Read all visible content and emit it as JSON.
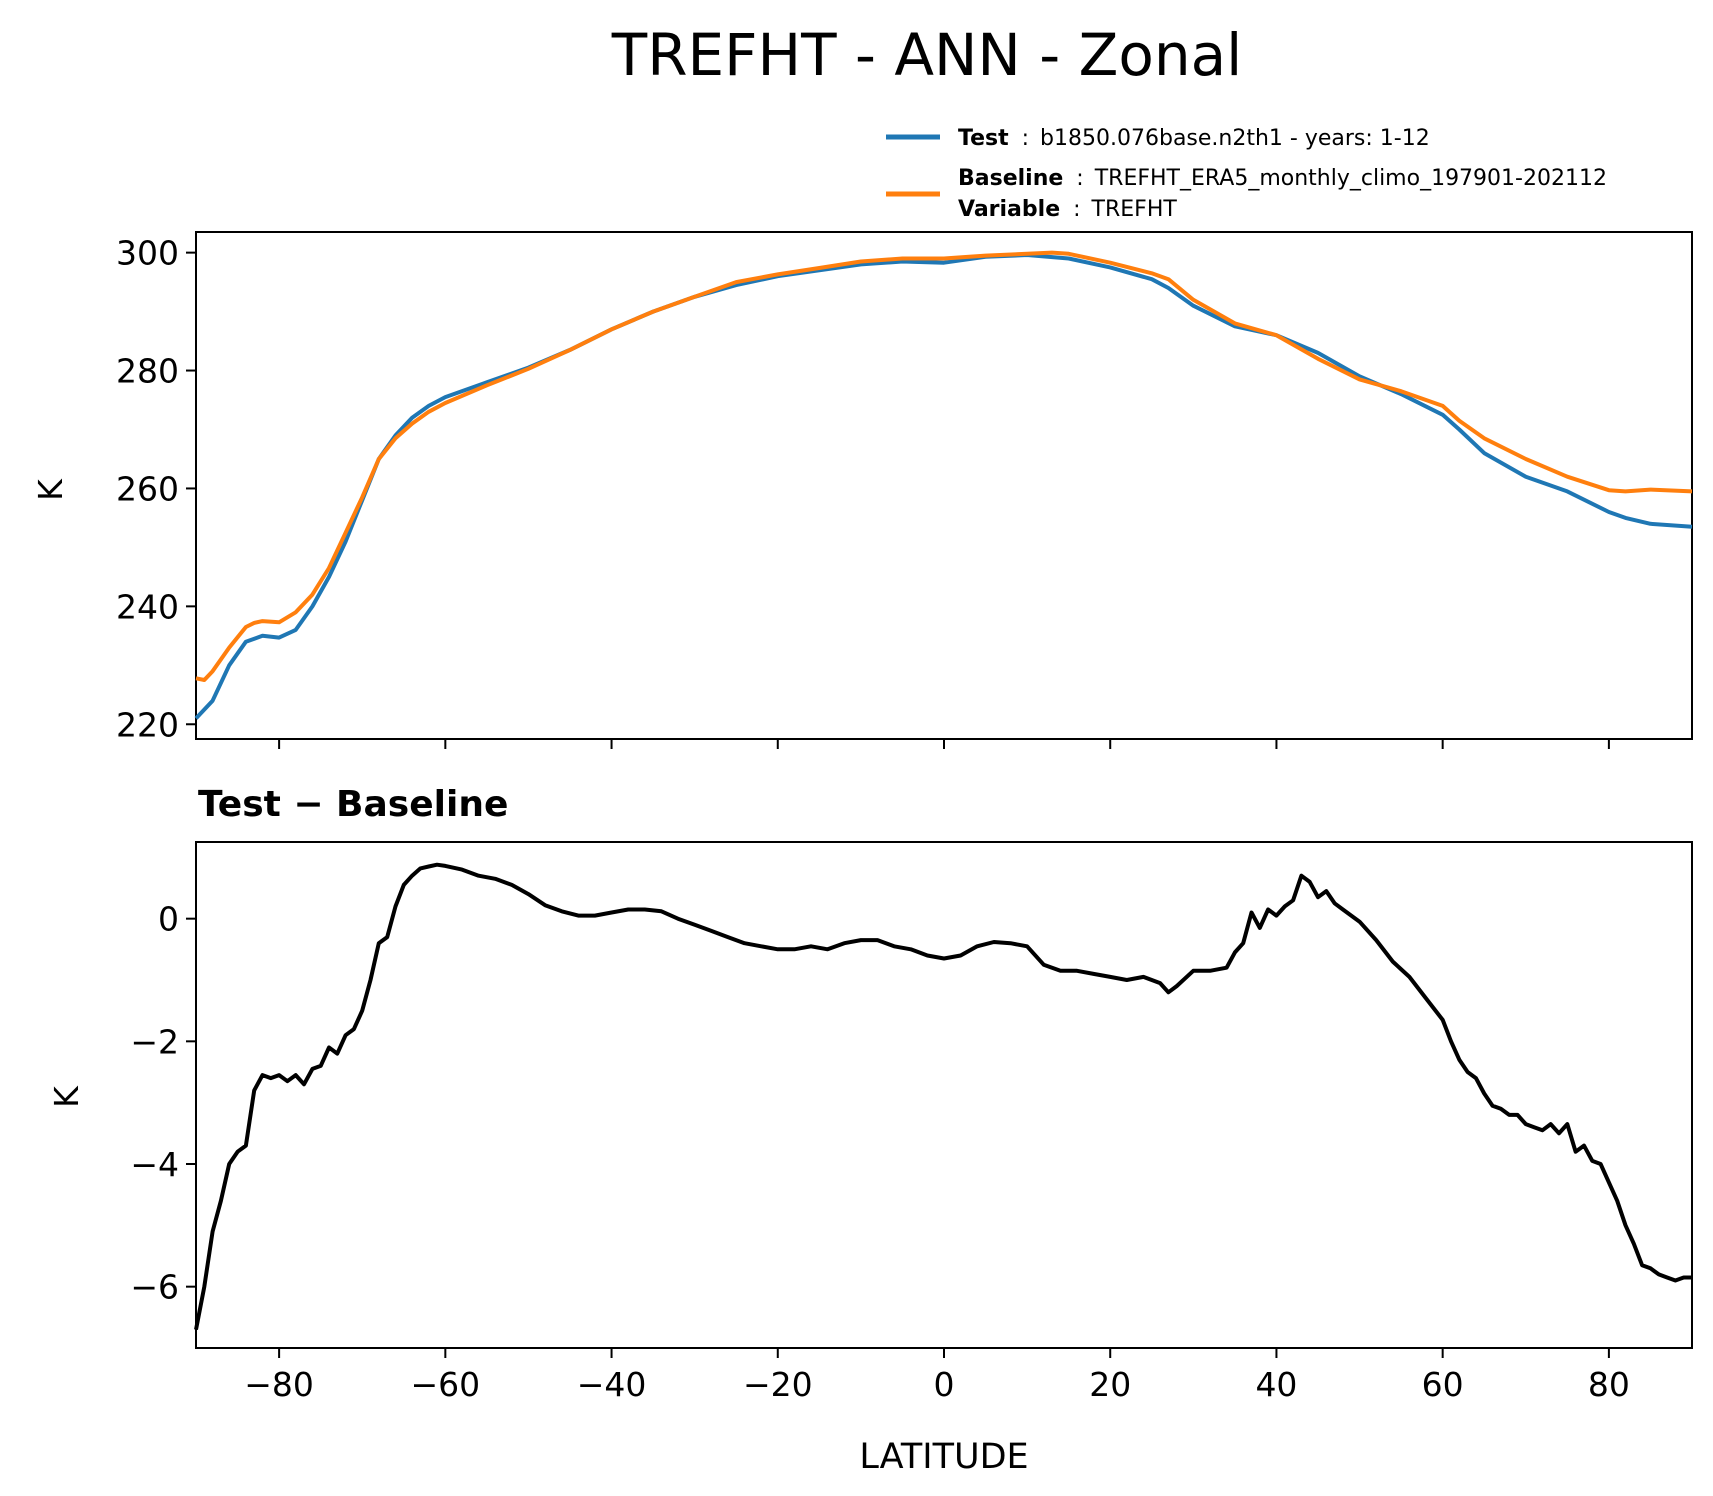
{
  "title": "TREFHT - ANN - Zonal",
  "legend": {
    "test_label": "Test",
    "test_text": "b1850.076base.n2th1 - years: 1-12",
    "baseline_label": "Baseline",
    "baseline_text": "TREFHT_ERA5_monthly_climo_197901-202112",
    "variable_label": "Variable",
    "variable_text": "TREFHT",
    "separator": ":"
  },
  "diff_title": "Test − Baseline",
  "colors": {
    "test": "#1f77b4",
    "baseline": "#ff7f0e",
    "diff": "#000000"
  },
  "chart_data": [
    {
      "type": "line",
      "xlabel": "",
      "ylabel": "K",
      "xlim": [
        -90,
        90
      ],
      "ylim": [
        217.5,
        303.5
      ],
      "yticks": [
        "220",
        "240",
        "260",
        "280",
        "300"
      ],
      "grid": false,
      "legend_position": "above-right",
      "series": [
        {
          "name": "Test",
          "color": "#1f77b4",
          "x": [
            -90,
            -88,
            -86,
            -84,
            -82,
            -80,
            -78,
            -76,
            -74,
            -72,
            -70,
            -68,
            -66,
            -64,
            -62,
            -60,
            -55,
            -50,
            -45,
            -40,
            -35,
            -30,
            -25,
            -20,
            -15,
            -10,
            -5,
            0,
            5,
            10,
            15,
            20,
            25,
            27,
            30,
            35,
            40,
            45,
            50,
            55,
            60,
            62,
            65,
            70,
            75,
            80,
            82,
            85,
            90
          ],
          "y": [
            221,
            224,
            230,
            234,
            235,
            234.7,
            236,
            240,
            245,
            251,
            258,
            265,
            269,
            272,
            274,
            275.5,
            278,
            280.5,
            283.5,
            287,
            290,
            292.5,
            294.5,
            296,
            297,
            298,
            298.5,
            298.3,
            299.3,
            299.6,
            299,
            297.5,
            295.5,
            294,
            291,
            287.5,
            286,
            283,
            279,
            276,
            272.5,
            270,
            266,
            262,
            259.5,
            256,
            255,
            254,
            253.5
          ]
        },
        {
          "name": "Baseline",
          "color": "#ff7f0e",
          "x": [
            -90,
            -89,
            -88,
            -86,
            -84,
            -83,
            -82,
            -80,
            -78,
            -76,
            -74,
            -72,
            -70,
            -68,
            -66,
            -64,
            -62,
            -60,
            -55,
            -50,
            -45,
            -40,
            -35,
            -30,
            -25,
            -20,
            -15,
            -10,
            -5,
            0,
            5,
            10,
            13,
            15,
            20,
            25,
            27,
            30,
            35,
            40,
            45,
            50,
            55,
            60,
            62,
            65,
            70,
            75,
            80,
            82,
            85,
            90
          ],
          "y": [
            227.8,
            227.5,
            229,
            233,
            236.5,
            237.2,
            237.5,
            237.3,
            239,
            242,
            246.5,
            252.5,
            258.5,
            265,
            268.5,
            271,
            273,
            274.5,
            277.5,
            280.3,
            283.5,
            287,
            290,
            292.5,
            295,
            296.3,
            297.4,
            298.5,
            299,
            299,
            299.5,
            299.8,
            300,
            299.8,
            298.3,
            296.5,
            295.5,
            292,
            288,
            286,
            282,
            278.5,
            276.5,
            274,
            271.5,
            268.5,
            265,
            262,
            259.7,
            259.5,
            259.8,
            259.5
          ]
        }
      ]
    },
    {
      "type": "line",
      "title": "Test − Baseline",
      "xlabel": "LATITUDE",
      "ylabel": "K",
      "xlim": [
        -90,
        90
      ],
      "ylim": [
        -7,
        1.25
      ],
      "xticks": [
        "−80",
        "−60",
        "−40",
        "−20",
        "0",
        "20",
        "40",
        "60",
        "80"
      ],
      "yticks": [
        "−6",
        "−4",
        "−2",
        "0"
      ],
      "grid": false,
      "series": [
        {
          "color": "#000000",
          "x": [
            -90,
            -89,
            -88,
            -87,
            -86,
            -85,
            -84,
            -83,
            -82,
            -81,
            -80,
            -79,
            -78,
            -77,
            -76,
            -75,
            -74,
            -73,
            -72,
            -71,
            -70,
            -69,
            -68,
            -67,
            -66,
            -65,
            -64,
            -63,
            -62,
            -61,
            -60,
            -58,
            -56,
            -54,
            -52,
            -50,
            -48,
            -46,
            -44,
            -42,
            -40,
            -38,
            -36,
            -34,
            -32,
            -30,
            -28,
            -26,
            -24,
            -22,
            -20,
            -18,
            -16,
            -14,
            -12,
            -10,
            -8,
            -6,
            -4,
            -2,
            0,
            2,
            4,
            6,
            8,
            10,
            12,
            14,
            16,
            18,
            20,
            22,
            24,
            26,
            27,
            28,
            30,
            32,
            34,
            35,
            36,
            37,
            38,
            39,
            40,
            41,
            42,
            43,
            44,
            45,
            46,
            47,
            48,
            50,
            52,
            54,
            56,
            58,
            60,
            61,
            62,
            63,
            64,
            65,
            66,
            67,
            68,
            69,
            70,
            71,
            72,
            73,
            74,
            75,
            76,
            77,
            78,
            79,
            80,
            81,
            82,
            83,
            84,
            85,
            86,
            87,
            88,
            89,
            90
          ],
          "y": [
            -6.7,
            -6,
            -5.1,
            -4.6,
            -4,
            -3.8,
            -3.7,
            -2.8,
            -2.55,
            -2.6,
            -2.55,
            -2.65,
            -2.55,
            -2.7,
            -2.45,
            -2.4,
            -2.1,
            -2.2,
            -1.9,
            -1.8,
            -1.5,
            -1.0,
            -0.4,
            -0.3,
            0.2,
            0.55,
            0.7,
            0.82,
            0.85,
            0.88,
            0.86,
            0.8,
            0.7,
            0.65,
            0.55,
            0.4,
            0.22,
            0.12,
            0.05,
            0.05,
            0.1,
            0.15,
            0.15,
            0.12,
            0.0,
            -0.1,
            -0.2,
            -0.3,
            -0.4,
            -0.45,
            -0.5,
            -0.5,
            -0.45,
            -0.5,
            -0.4,
            -0.35,
            -0.35,
            -0.45,
            -0.5,
            -0.6,
            -0.65,
            -0.6,
            -0.45,
            -0.38,
            -0.4,
            -0.45,
            -0.75,
            -0.85,
            -0.85,
            -0.9,
            -0.95,
            -1.0,
            -0.95,
            -1.05,
            -1.2,
            -1.1,
            -0.85,
            -0.85,
            -0.8,
            -0.55,
            -0.4,
            0.1,
            -0.15,
            0.15,
            0.05,
            0.2,
            0.3,
            0.7,
            0.6,
            0.35,
            0.45,
            0.25,
            0.15,
            -0.05,
            -0.35,
            -0.7,
            -0.95,
            -1.3,
            -1.65,
            -2.0,
            -2.3,
            -2.5,
            -2.6,
            -2.85,
            -3.05,
            -3.1,
            -3.2,
            -3.2,
            -3.35,
            -3.4,
            -3.45,
            -3.35,
            -3.5,
            -3.35,
            -3.8,
            -3.7,
            -3.95,
            -4.0,
            -4.3,
            -4.6,
            -5.0,
            -5.3,
            -5.65,
            -5.7,
            -5.8,
            -5.85,
            -5.9,
            -5.85,
            -5.85
          ]
        }
      ]
    }
  ]
}
